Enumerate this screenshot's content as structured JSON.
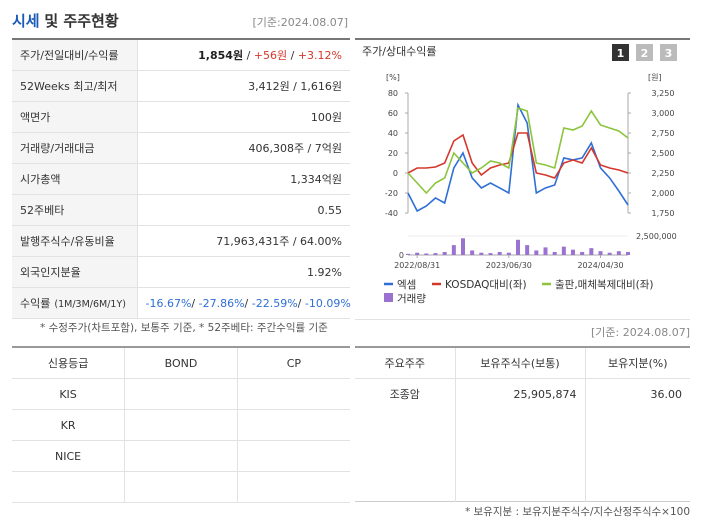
{
  "header": {
    "title_highlight": "시세",
    "title_rest": "및 주주현황",
    "date": "[기준:2024.08.07]"
  },
  "quote_table": {
    "rows": [
      {
        "label": "주가/전일대비/수익률",
        "value": [
          "1,854원",
          " / ",
          "+56원",
          " / ",
          "+3.12%"
        ]
      },
      {
        "label": "52Weeks 최고/최저",
        "value": [
          "3,412원 / 1,616원"
        ]
      },
      {
        "label": "액면가",
        "value": [
          "100원"
        ]
      },
      {
        "label": "거래량/거래대금",
        "value": [
          "406,308주 / 7억원"
        ]
      },
      {
        "label": "시가총액",
        "value": [
          "1,334억원"
        ]
      },
      {
        "label": "52주베타",
        "value": [
          "0.55"
        ]
      },
      {
        "label": "발행주식수/유동비율",
        "value": [
          "71,963,431주 / 64.00%"
        ]
      },
      {
        "label": "외국인지분율",
        "value": [
          "1.92%"
        ]
      },
      {
        "label": "수익률",
        "sublabel": "(1M/3M/6M/1Y)",
        "value": [
          "-16.67%",
          "/ ",
          "-27.86%",
          "/ ",
          "-22.59%",
          "/ ",
          "-10.09%"
        ]
      }
    ],
    "note": "* 수정주가(차트포함), 보통주 기준, * 52주베타: 주간수익률 기준"
  },
  "chart_data": {
    "type": "line",
    "title": "주가/상대수익률",
    "buttons": [
      "1",
      "2",
      "3"
    ],
    "y_unit": "[%]",
    "y2_unit": "[원]",
    "ylim": [
      -40,
      80
    ],
    "yticks": [
      80,
      60,
      40,
      20,
      0,
      -20,
      -40
    ],
    "y2lim": [
      1750,
      3250
    ],
    "y2ticks": [
      {
        "value": 3250,
        "label": "3,250"
      },
      {
        "value": 3000,
        "label": "3,000"
      },
      {
        "value": 2750,
        "label": "2,750"
      },
      {
        "value": 2500,
        "label": "2,500"
      },
      {
        "value": 2250,
        "label": "2,250"
      },
      {
        "value": 2000,
        "label": "2,000"
      },
      {
        "value": 1750,
        "label": "1,750"
      }
    ],
    "y3lim": [
      0,
      2500000
    ],
    "y3ticks": [
      0,
      {
        "value": 2500000,
        "label": "2,500,000"
      }
    ],
    "xlim": [
      0,
      24
    ],
    "xticks": [
      {
        "value": 1,
        "label": "2022/08/31"
      },
      {
        "value": 11,
        "label": "2023/06/30"
      },
      {
        "value": 21,
        "label": "2024/04/30"
      }
    ],
    "series": [
      {
        "name": "엑셈",
        "color": "#2f6fd6",
        "axis": "y2",
        "values": [
          2000,
          1775,
          1838,
          1938,
          1875,
          2313,
          2500,
          2188,
          2063,
          2125,
          2063,
          2000,
          3100,
          2875,
          2000,
          2063,
          2100,
          2438,
          2413,
          2438,
          2625,
          2313,
          2188,
          2025,
          1850
        ]
      },
      {
        "name": "KOSDAQ대비(좌)",
        "color": "#d4382c",
        "values": [
          0,
          5,
          5,
          6,
          10,
          32,
          38,
          10,
          -2,
          5,
          8,
          10,
          40,
          40,
          0,
          -2,
          -5,
          10,
          13,
          10,
          25,
          8,
          5,
          3,
          0
        ]
      },
      {
        "name": "출판,매체복제대비(좌)",
        "color": "#8cc43c",
        "values": [
          0,
          -10,
          -20,
          -10,
          -5,
          20,
          10,
          0,
          5,
          12,
          10,
          5,
          65,
          62,
          10,
          8,
          5,
          45,
          43,
          47,
          62,
          48,
          45,
          42,
          35
        ]
      },
      {
        "name": "거래량",
        "color": "#9b72d0",
        "axis": "y3",
        "values": [
          150000,
          300000,
          200000,
          250000,
          400000,
          1300000,
          2200000,
          600000,
          300000,
          250000,
          400000,
          300000,
          2000000,
          1300000,
          600000,
          1000000,
          400000,
          1100000,
          700000,
          400000,
          900000,
          500000,
          300000,
          500000,
          400000
        ]
      }
    ]
  },
  "credit_table": {
    "headers": [
      "신용등급",
      "BOND",
      "CP"
    ],
    "rows": [
      "KIS",
      "KR",
      "NICE"
    ]
  },
  "holders": {
    "date": "[기준: 2024.08.07]",
    "headers": [
      "주요주주",
      "보유주식수(보통)",
      "보유지분(%)"
    ],
    "rows": [
      [
        "조종암",
        "25,905,874",
        "36.00"
      ]
    ],
    "note": "* 보유지분 : 보유지분주식수/지수산정주식수×100"
  }
}
